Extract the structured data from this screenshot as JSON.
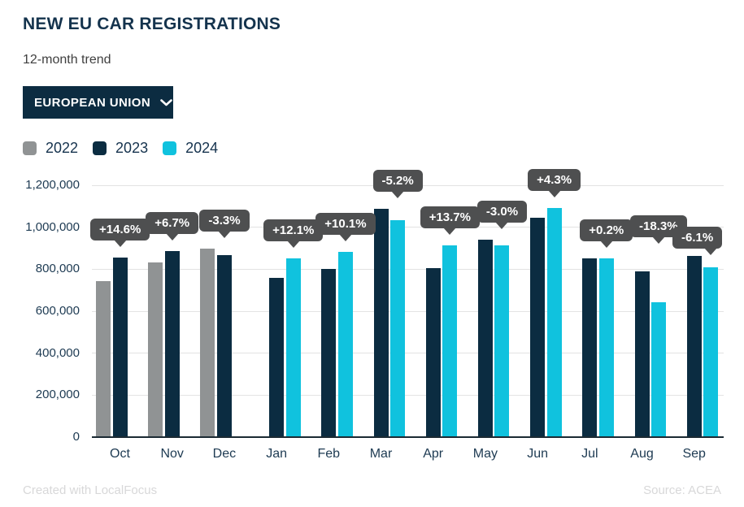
{
  "header": {
    "title": "NEW EU CAR REGISTRATIONS",
    "subtitle": "12-month trend",
    "dropdown": {
      "label": "EUROPEAN UNION",
      "icon": "chevron-down-icon"
    }
  },
  "legend": [
    {
      "label": "2022",
      "color": "#909394"
    },
    {
      "label": "2023",
      "color": "#0b2c41"
    },
    {
      "label": "2024",
      "color": "#10c2de"
    }
  ],
  "chart_data": {
    "type": "bar",
    "title": "NEW EU CAR REGISTRATIONS",
    "xlabel": "",
    "ylabel": "",
    "categories": [
      "Oct",
      "Nov",
      "Dec",
      "Jan",
      "Feb",
      "Mar",
      "Apr",
      "May",
      "Jun",
      "Jul",
      "Aug",
      "Sep"
    ],
    "y_tick_labels": [
      "0",
      "200,000",
      "400,000",
      "600,000",
      "800,000",
      "1,000,000",
      "1,200,000"
    ],
    "ylim": [
      0,
      1200000
    ],
    "y_tick_step": 200000,
    "grid": true,
    "legend_position": "top-left",
    "series": [
      {
        "name": "2022",
        "color": "#909394",
        "values": [
          745000,
          831000,
          897000,
          null,
          null,
          null,
          null,
          null,
          null,
          null,
          null,
          null
        ]
      },
      {
        "name": "2023",
        "color": "#0b2c41",
        "values": [
          855000,
          886000,
          867000,
          760000,
          803000,
          1088000,
          804000,
          940000,
          1045000,
          851000,
          788000,
          862000
        ]
      },
      {
        "name": "2024",
        "color": "#10c2de",
        "values": [
          null,
          null,
          null,
          852000,
          884000,
          1032000,
          914000,
          912000,
          1090000,
          852000,
          644000,
          809000
        ]
      }
    ],
    "annotations": [
      "+14.6%",
      "+6.7%",
      "-3.3%",
      "+12.1%",
      "+10.1%",
      "-5.2%",
      "+13.7%",
      "-3.0%",
      "+4.3%",
      "+0.2%",
      "-18.3%",
      "-6.1%"
    ]
  },
  "colors": {
    "title_text": "#14334d",
    "axis_text": "#1d3a52",
    "bar_2022": "#909394",
    "bar_2023": "#0b2c41",
    "bar_2024": "#10c2de",
    "dropdown_bg": "#0c2c41",
    "tooltip_bg": "#4e4f50",
    "gridline": "#e3e3e3"
  },
  "footer": {
    "left": "Created with LocalFocus",
    "right": "Source: ACEA"
  }
}
